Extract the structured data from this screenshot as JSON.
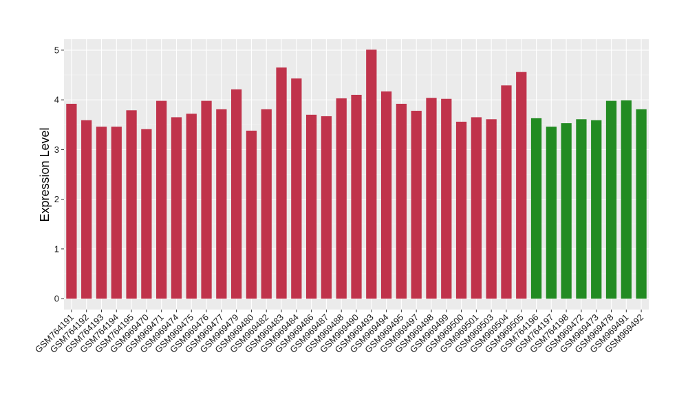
{
  "chart_data": {
    "type": "bar",
    "title": "",
    "xlabel": "",
    "ylabel": "Expression Level",
    "ylim": [
      -0.22,
      5.22
    ],
    "yticks": [
      0,
      1,
      2,
      3,
      4,
      5
    ],
    "grid": true,
    "legend": "none",
    "colors": {
      "red": "#c0334b",
      "green": "#228b22",
      "panel": "#ebebeb",
      "grid": "#ffffff"
    },
    "categories": [
      "GSM764191",
      "GSM764192",
      "GSM764193",
      "GSM764194",
      "GSM764195",
      "GSM969470",
      "GSM969471",
      "GSM969474",
      "GSM969475",
      "GSM969476",
      "GSM969477",
      "GSM969479",
      "GSM969480",
      "GSM969482",
      "GSM969483",
      "GSM969484",
      "GSM969486",
      "GSM969487",
      "GSM969488",
      "GSM969490",
      "GSM969493",
      "GSM969494",
      "GSM969495",
      "GSM969497",
      "GSM969498",
      "GSM969499",
      "GSM969500",
      "GSM969501",
      "GSM969503",
      "GSM969504",
      "GSM969505",
      "GSM764196",
      "GSM764197",
      "GSM764198",
      "GSM969472",
      "GSM969473",
      "GSM969478",
      "GSM969491",
      "GSM969492"
    ],
    "values": [
      3.92,
      3.59,
      3.46,
      3.46,
      3.79,
      3.41,
      3.98,
      3.65,
      3.72,
      3.98,
      3.81,
      4.21,
      3.38,
      3.81,
      4.65,
      4.43,
      3.7,
      3.67,
      4.03,
      4.1,
      5.01,
      4.17,
      3.92,
      3.78,
      4.04,
      4.02,
      3.56,
      3.65,
      3.61,
      4.29,
      4.56,
      3.63,
      3.46,
      3.53,
      3.61,
      3.59,
      3.98,
      3.99,
      3.81
    ],
    "bar_colors": [
      "red",
      "red",
      "red",
      "red",
      "red",
      "red",
      "red",
      "red",
      "red",
      "red",
      "red",
      "red",
      "red",
      "red",
      "red",
      "red",
      "red",
      "red",
      "red",
      "red",
      "red",
      "red",
      "red",
      "red",
      "red",
      "red",
      "red",
      "red",
      "red",
      "red",
      "red",
      "green",
      "green",
      "green",
      "green",
      "green",
      "green",
      "green",
      "green"
    ]
  }
}
